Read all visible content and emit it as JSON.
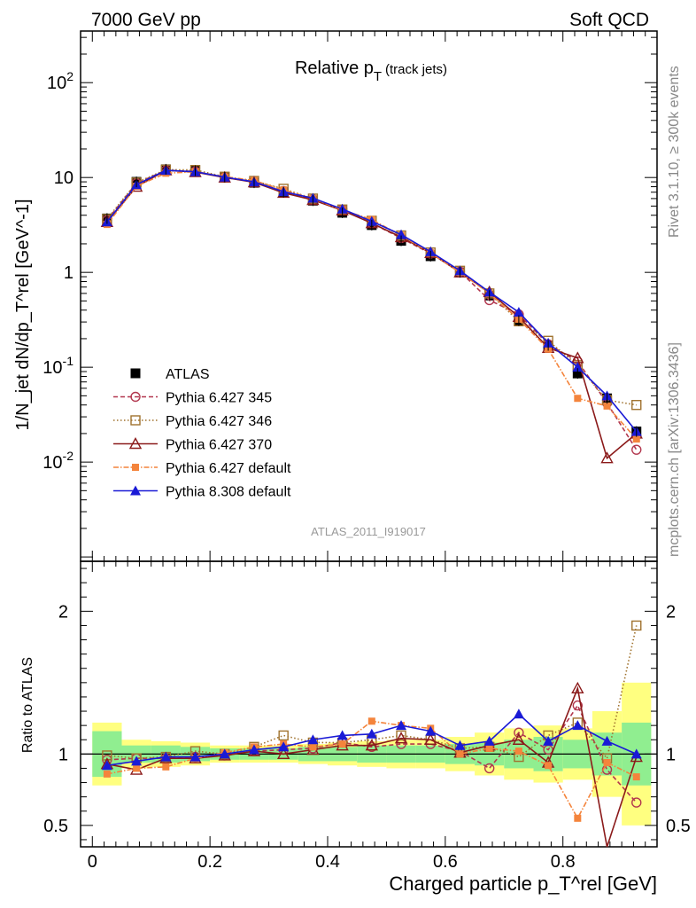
{
  "header": {
    "left": "7000 GeV pp",
    "right": "Soft QCD"
  },
  "side_labels": {
    "rivet": "Rivet 3.1.10, ≥ 300k events",
    "source": "mcplots.cern.ch [arXiv:1306.3436]"
  },
  "chart_data": {
    "type": "line",
    "title": "Relative p_T (track jets)",
    "watermark": "ATLAS_2011_I919017",
    "xlabel": "Charged particle p_T^rel [GeV]",
    "ylabel": "1/N_jet dN/dp_T^rel [GeV^-1]",
    "ratio_ylabel": "Ratio to ATLAS",
    "xlim": [
      -0.02,
      0.96
    ],
    "ylim": [
      0.0009,
      350
    ],
    "yscale": "log",
    "ratio_ylim": [
      0.35,
      2.35
    ],
    "legend_position": "lower-left",
    "x": [
      0.025,
      0.075,
      0.125,
      0.175,
      0.225,
      0.275,
      0.325,
      0.375,
      0.425,
      0.475,
      0.525,
      0.575,
      0.625,
      0.675,
      0.725,
      0.775,
      0.825,
      0.875,
      0.925
    ],
    "x_ticks": [
      0,
      0.2,
      0.4,
      0.6,
      0.8
    ],
    "x_tick_labels": [
      "0",
      "0.2",
      "0.4",
      "0.6",
      "0.8"
    ],
    "y_ticks": [
      0.01,
      0.1,
      1,
      10,
      100
    ],
    "y_tick_labels": [
      "10^-2",
      "10^-1",
      "1",
      "10",
      "10^2"
    ],
    "ratio_ticks": [
      0.5,
      1,
      2
    ],
    "ratio_tick_labels": [
      "0.5",
      "1",
      "2"
    ],
    "data": {
      "name": "ATLAS",
      "values": [
        3.7,
        9.0,
        12.2,
        11.8,
        10.1,
        8.8,
        7.0,
        5.7,
        4.25,
        3.15,
        2.15,
        1.48,
        1.0,
        0.57,
        0.31,
        0.17,
        0.086,
        0.047,
        0.021
      ],
      "band_inner": [
        0.16,
        0.06,
        0.06,
        0.05,
        0.04,
        0.04,
        0.04,
        0.05,
        0.05,
        0.06,
        0.06,
        0.06,
        0.07,
        0.08,
        0.1,
        0.12,
        0.1,
        0.15,
        0.22
      ],
      "band_outer": [
        0.22,
        0.1,
        0.09,
        0.08,
        0.06,
        0.06,
        0.06,
        0.07,
        0.08,
        0.09,
        0.1,
        0.1,
        0.12,
        0.15,
        0.18,
        0.2,
        0.18,
        0.3,
        0.5
      ]
    },
    "series": [
      {
        "name": "Pythia 6.427 345",
        "color": "#b2374e",
        "dash": "5,3",
        "marker": "circle-open",
        "values": [
          3.55,
          8.7,
          11.9,
          11.6,
          10.0,
          9.0,
          7.2,
          5.9,
          4.6,
          3.3,
          2.3,
          1.58,
          1.02,
          0.51,
          0.36,
          0.175,
          0.115,
          0.042,
          0.0135
        ],
        "ratio": [
          0.96,
          0.97,
          0.97,
          0.98,
          0.99,
          1.02,
          1.03,
          1.04,
          1.08,
          1.05,
          1.07,
          1.07,
          1.02,
          0.9,
          1.15,
          1.03,
          1.34,
          0.89,
          0.66
        ]
      },
      {
        "name": "Pythia 6.427 346",
        "color": "#a0722e",
        "dash": "1.5,2.5",
        "marker": "square-open",
        "values": [
          3.65,
          8.85,
          12.1,
          12.0,
          10.2,
          9.2,
          7.6,
          6.0,
          4.6,
          3.5,
          2.45,
          1.62,
          1.04,
          0.6,
          0.305,
          0.19,
          0.105,
          0.045,
          0.04
        ],
        "ratio": [
          0.99,
          0.97,
          0.98,
          1.02,
          1.0,
          1.05,
          1.13,
          1.08,
          1.08,
          1.1,
          1.13,
          1.1,
          1.04,
          1.05,
          0.98,
          1.13,
          1.22,
          0.97,
          1.9
        ]
      },
      {
        "name": "Pythia 6.427 370",
        "color": "#8b1a1a",
        "dash": "",
        "marker": "triangle-open",
        "values": [
          3.4,
          8.0,
          11.9,
          11.4,
          10.0,
          8.9,
          6.9,
          5.8,
          4.5,
          3.3,
          2.35,
          1.6,
          1.0,
          0.62,
          0.34,
          0.16,
          0.125,
          0.011,
          0.02
        ],
        "ratio": [
          0.93,
          0.89,
          0.97,
          0.97,
          0.99,
          1.02,
          1.0,
          1.03,
          1.06,
          1.06,
          1.11,
          1.1,
          1.01,
          1.06,
          1.1,
          0.94,
          1.46,
          0.24,
          0.98
        ]
      },
      {
        "name": "Pythia 6.427 default",
        "color": "#f4843c",
        "dash": "6,2,1.5,2",
        "marker": "square-filled",
        "values": [
          3.2,
          8.1,
          11.1,
          11.5,
          10.2,
          9.3,
          7.4,
          6.0,
          4.55,
          3.6,
          2.45,
          1.6,
          1.0,
          0.6,
          0.32,
          0.155,
          0.047,
          0.039,
          0.0175
        ],
        "ratio": [
          0.86,
          0.9,
          0.91,
          0.97,
          1.01,
          1.05,
          1.07,
          1.05,
          1.07,
          1.23,
          1.2,
          1.18,
          1.0,
          1.04,
          1.02,
          0.92,
          0.55,
          0.94,
          0.84
        ]
      },
      {
        "name": "Pythia 8.308 default",
        "color": "#1a1ad6",
        "dash": "",
        "marker": "triangle-filled",
        "values": [
          3.4,
          8.4,
          11.9,
          11.5,
          10.1,
          9.0,
          7.1,
          6.05,
          4.65,
          3.45,
          2.5,
          1.65,
          1.04,
          0.62,
          0.38,
          0.18,
          0.1,
          0.05,
          0.021
        ],
        "ratio": [
          0.92,
          0.95,
          0.98,
          0.98,
          1.0,
          1.03,
          1.05,
          1.1,
          1.13,
          1.14,
          1.2,
          1.16,
          1.06,
          1.09,
          1.28,
          1.09,
          1.2,
          1.09,
          1.0
        ]
      }
    ]
  }
}
